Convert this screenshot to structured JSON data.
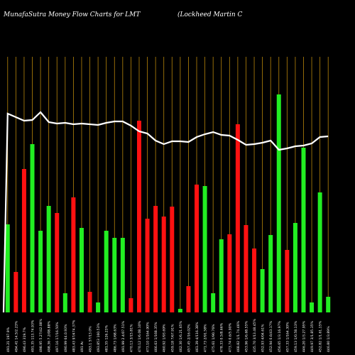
{
  "header": {
    "title": "MunafaSutra  Money Flow  Charts for LMT",
    "company": "(Lockheed Martin  C"
  },
  "colors": {
    "background": "#000000",
    "buy": "#22ee22",
    "sell": "#ff1111",
    "line": "#ffffff",
    "grid": "#b8860b",
    "text": "#ffffff"
  },
  "chart_data": {
    "type": "bar",
    "ylim": [
      0,
      360
    ],
    "categories": [
      "491.21 197.9%",
      "494.41 14.5/2.23%",
      "496.43 319.7%",
      "491.35 113.74.93%",
      "498.95 5.27/42.08%",
      "498.36 7.2/08.88%",
      "497.16 17/16.50%",
      "490.99 64.0.93%",
      "483.43 97/474.37%",
      "491 Ac",
      "493.1 57/13.0%",
      "493.853 160.53%",
      "481.55 126.23%",
      "486.73 1/68.63%",
      "491.99 2.4/07.51%",
      "470.13 3/15.81%",
      "470.12 1/6.08.10%",
      "473.10 1/164.90%",
      "466.63 1/168.35%",
      "460.92 1/93.69%",
      "459.18 7/67.91%",
      "462.30 1/6.21.65%",
      "457.45 2/16.02%",
      "461.39 4/116.38%",
      "471.73 2/91.58%",
      "475.61 1/90.76%",
      "478.33 0.5/8.66%",
      "473.74 0.6/5.90%",
      "468.82 1/1.74.46%",
      "453.96 1/6.68.55%",
      "435.70 3/13.48.45%",
      "452.93 4/04.61%",
      "452.94 0.6/43.17%",
      "456.65 1/3.16.97%",
      "457.33 1/164.30%",
      "459.13 1/0.58.13%",
      "446.20 1/3.27.95%",
      "449.97 3/1.85.35%",
      "452.82 1/1.61.15%",
      "446.80 1/3.89%"
    ],
    "series": [
      {
        "kind": "money-flow",
        "values": [
          124,
          57,
          202,
          237,
          115,
          150,
          140,
          27,
          162,
          119,
          29,
          14,
          115,
          105,
          105,
          20,
          270,
          132,
          150,
          135,
          149,
          5,
          37,
          180,
          178,
          27,
          103,
          110,
          265,
          123,
          90,
          61,
          109,
          307,
          88,
          126,
          232,
          14,
          169,
          22
        ]
      },
      {
        "kind": "price",
        "values": [
          280,
          275,
          270,
          271,
          282,
          268,
          266,
          267,
          265,
          266,
          265,
          264,
          267,
          269,
          269,
          263,
          255,
          252,
          242,
          237,
          241,
          241,
          240,
          247,
          251,
          254,
          250,
          249,
          243,
          236,
          237,
          239,
          242,
          229,
          231,
          234,
          235,
          238,
          247,
          248
        ]
      }
    ],
    "bar_colors": [
      "buy",
      "sell",
      "sell",
      "buy",
      "buy",
      "buy",
      "sell",
      "buy",
      "sell",
      "buy",
      "sell",
      "buy",
      "buy",
      "buy",
      "buy",
      "sell",
      "sell",
      "sell",
      "sell",
      "sell",
      "sell",
      "buy",
      "sell",
      "sell",
      "buy",
      "buy",
      "buy",
      "sell",
      "sell",
      "sell",
      "sell",
      "buy",
      "buy",
      "buy",
      "sell",
      "buy",
      "buy",
      "buy",
      "buy",
      "buy"
    ],
    "grid": true
  }
}
